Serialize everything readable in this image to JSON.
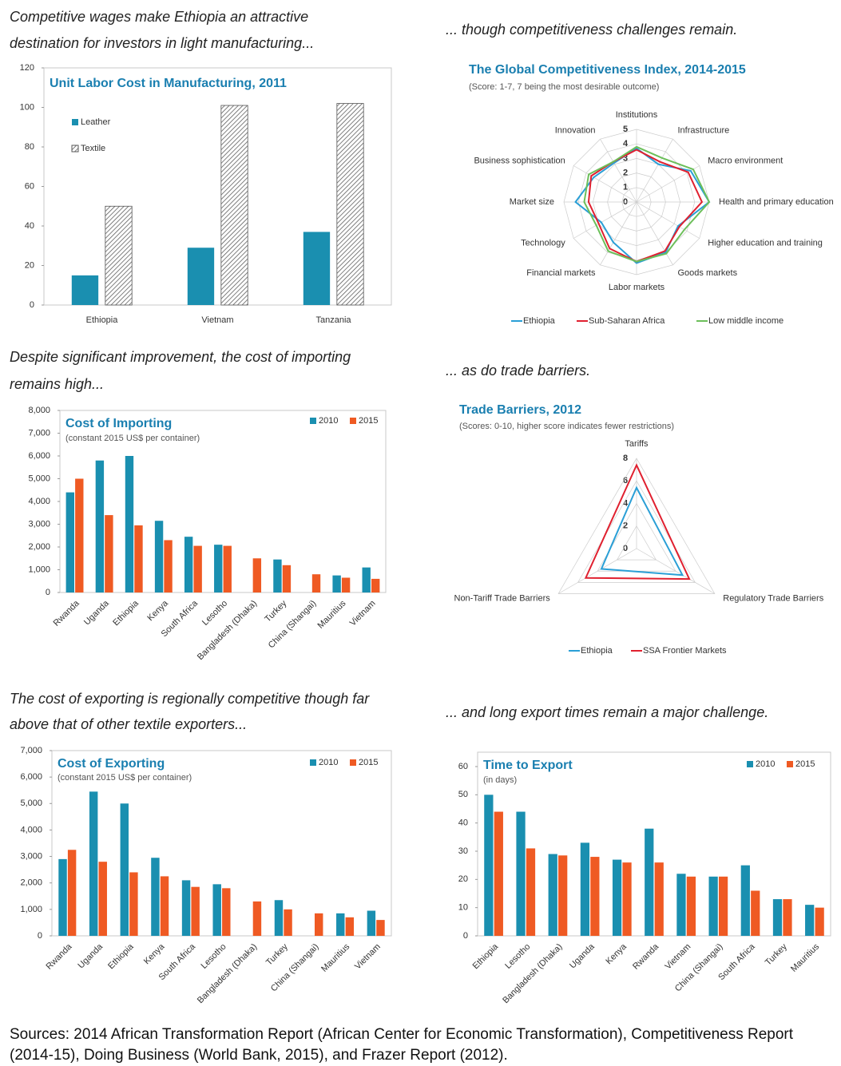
{
  "captions": [
    [
      "Competitive wages make Ethiopia an attractive",
      "destination for investors in light manufacturing..."
    ],
    [
      "... though competitiveness challenges remain."
    ],
    [
      "Despite significant improvement, the cost of importing",
      "remains high..."
    ],
    [
      "... as do trade barriers."
    ],
    [
      "The cost of exporting is regionally competitive though far",
      "above that of other textile exporters..."
    ],
    [
      "... and long export times remain a major challenge."
    ]
  ],
  "sources": "Sources: 2014 African Transformation Report (African Center for Economic Transformation), Competitiveness Report (2014-15), Doing Business (World Bank, 2015), and Frazer Report (2012).",
  "chart_data": [
    {
      "type": "bar",
      "title": "Unit Labor Cost in Manufacturing, 2011",
      "categories": [
        "Ethiopia",
        "Vietnam",
        "Tanzania"
      ],
      "series": [
        {
          "name": "Leather",
          "color": "#1a8fb0",
          "values": [
            15,
            29,
            37
          ]
        },
        {
          "name": "Textile",
          "color": "#555555",
          "hatch": true,
          "values": [
            50,
            101,
            102
          ]
        }
      ],
      "ylim": [
        0,
        120
      ],
      "yticks": [
        0,
        20,
        40,
        60,
        80,
        100,
        120
      ]
    },
    {
      "type": "radar",
      "title": "The Global Competitiveness Index, 2014-2015",
      "subtitle": "(Score: 1-7, 7 being the most desirable outcome)",
      "categories": [
        "Institutions",
        "Infrastructure",
        "Macro environment",
        "Health and primary education",
        "Higher education and training",
        "Goods markets",
        "Labor markets",
        "Financial markets",
        "Technology",
        "Market size",
        "Business sophistication",
        "Innovation"
      ],
      "series": [
        {
          "name": "Ethiopia",
          "color": "#2a9fd6",
          "values": [
            3.7,
            3.0,
            4.3,
            5.0,
            3.3,
            4.0,
            4.2,
            3.2,
            2.8,
            4.2,
            3.4,
            3.1
          ]
        },
        {
          "name": "Sub-Saharan Africa",
          "color": "#e0202f",
          "values": [
            3.6,
            3.2,
            4.1,
            4.5,
            3.4,
            3.9,
            4.1,
            3.7,
            3.0,
            3.3,
            3.6,
            3.2
          ]
        },
        {
          "name": "Low middle income",
          "color": "#6cbf5a",
          "values": [
            3.8,
            3.5,
            4.5,
            5.0,
            3.8,
            4.1,
            4.1,
            3.9,
            3.2,
            3.6,
            3.8,
            3.2
          ]
        }
      ],
      "rlim": [
        0,
        5
      ],
      "rticks": [
        0,
        1,
        2,
        3,
        4,
        5
      ]
    },
    {
      "type": "bar",
      "title": "Cost of Importing",
      "subtitle": "(constant 2015 US$ per container)",
      "categories": [
        "Rwanda",
        "Uganda",
        "Ethiopia",
        "Kenya",
        "South Africa",
        "Lesotho",
        "Bangladesh (Dhaka)",
        "Turkey",
        "China (Shangai)",
        "Mauritius",
        "Vietnam"
      ],
      "series": [
        {
          "name": "2010",
          "color": "#1a8fb0",
          "values": [
            4400,
            5800,
            6000,
            3150,
            2450,
            2100,
            null,
            1450,
            null,
            750,
            1100
          ]
        },
        {
          "name": "2015",
          "color": "#ef5a23",
          "values": [
            5000,
            3400,
            2950,
            2300,
            2050,
            2050,
            1500,
            1200,
            800,
            650,
            600
          ]
        }
      ],
      "ylim": [
        0,
        8000
      ],
      "yticks": [
        0,
        {
          "value": 1000,
          "label": "1,000"
        },
        {
          "value": 2000,
          "label": "2,000"
        },
        {
          "value": 3000,
          "label": "3,000"
        },
        {
          "value": 4000,
          "label": "4,000"
        },
        {
          "value": 5000,
          "label": "5,000"
        },
        {
          "value": 6000,
          "label": "6,000"
        },
        {
          "value": 7000,
          "label": "7,000"
        },
        {
          "value": 8000,
          "label": "8,000"
        }
      ]
    },
    {
      "type": "radar",
      "title": "Trade Barriers, 2012",
      "subtitle": "(Scores: 0-10, higher score indicates fewer restrictions)",
      "categories": [
        "Tariffs",
        "Regulatory Trade Barriers",
        "Non-Tariff Trade Barriers"
      ],
      "series": [
        {
          "name": "Ethiopia",
          "color": "#2a9fd6",
          "values": [
            5.4,
            4.7,
            3.6
          ]
        },
        {
          "name": "SSA Frontier Markets",
          "color": "#e0202f",
          "values": [
            7.4,
            5.4,
            5.2
          ]
        }
      ],
      "rlim": [
        0,
        8
      ],
      "rticks": [
        0,
        2,
        4,
        6,
        8
      ]
    },
    {
      "type": "bar",
      "title": "Cost of Exporting",
      "subtitle": "(constant 2015 US$ per container)",
      "categories": [
        "Rwanda",
        "Uganda",
        "Ethiopia",
        "Kenya",
        "South Africa",
        "Lesotho",
        "Bangladesh (Dhaka)",
        "Turkey",
        "China (Shangai)",
        "Mauritius",
        "Vietnam"
      ],
      "series": [
        {
          "name": "2010",
          "color": "#1a8fb0",
          "values": [
            2900,
            5450,
            5000,
            2950,
            2100,
            1950,
            null,
            1350,
            null,
            850,
            950
          ]
        },
        {
          "name": "2015",
          "color": "#ef5a23",
          "values": [
            3250,
            2800,
            2400,
            2250,
            1850,
            1800,
            1300,
            1000,
            850,
            700,
            600
          ]
        }
      ],
      "ylim": [
        0,
        7000
      ],
      "yticks": [
        0,
        {
          "value": 1000,
          "label": "1,000"
        },
        {
          "value": 2000,
          "label": "2,000"
        },
        {
          "value": 3000,
          "label": "3,000"
        },
        {
          "value": 4000,
          "label": "4,000"
        },
        {
          "value": 5000,
          "label": "5,000"
        },
        {
          "value": 6000,
          "label": "6,000"
        },
        {
          "value": 7000,
          "label": "7,000"
        }
      ]
    },
    {
      "type": "bar",
      "title": "Time to Export",
      "subtitle": "(in days)",
      "categories": [
        "Ethiopia",
        "Lesotho",
        "Bangladesh (Dhaka)",
        "Uganda",
        "Kenya",
        "Rwanda",
        "Vietnam",
        "China (Shangai)",
        "South Africa",
        "Turkey",
        "Mauritius"
      ],
      "series": [
        {
          "name": "2010",
          "color": "#1a8fb0",
          "values": [
            50,
            44,
            29,
            33,
            27,
            38,
            22,
            21,
            25,
            13,
            11
          ]
        },
        {
          "name": "2015",
          "color": "#ef5a23",
          "values": [
            44,
            31,
            28.5,
            28,
            26,
            26,
            21,
            21,
            16,
            13,
            10
          ]
        }
      ],
      "ylim": [
        0,
        60
      ],
      "yticks": [
        0,
        10,
        20,
        30,
        40,
        50,
        60
      ]
    }
  ]
}
